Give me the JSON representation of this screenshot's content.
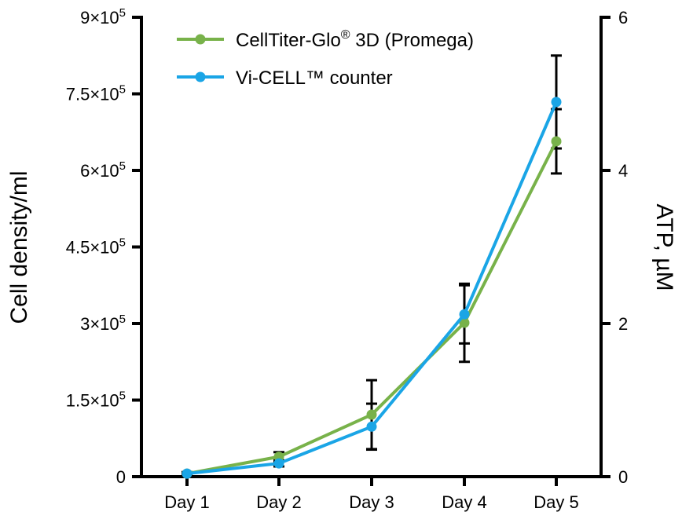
{
  "chart_data": {
    "type": "line",
    "categories": [
      "Day 1",
      "Day 2",
      "Day 3",
      "Day 4",
      "Day 5"
    ],
    "y_left": {
      "label": "Cell density/ml",
      "range": [
        0,
        900000
      ],
      "ticks": [
        0,
        150000,
        300000,
        450000,
        600000,
        750000,
        900000
      ],
      "tick_labels": [
        {
          "mantissa": "0",
          "exp": ""
        },
        {
          "mantissa": "1.5×10",
          "exp": "5"
        },
        {
          "mantissa": "3×10",
          "exp": "5"
        },
        {
          "mantissa": "4.5×10",
          "exp": "5"
        },
        {
          "mantissa": "6×10",
          "exp": "5"
        },
        {
          "mantissa": "7.5×10",
          "exp": "5"
        },
        {
          "mantissa": "9×10",
          "exp": "5"
        }
      ]
    },
    "y_right": {
      "label": "ATP, µM",
      "range": [
        0,
        6
      ],
      "ticks": [
        0,
        2,
        4,
        6
      ],
      "tick_labels": [
        "0",
        "2",
        "4",
        "6"
      ]
    },
    "series": [
      {
        "name": "CellTiter-Glo® 3D (Promega)",
        "legend_main": "CellTiter-Glo",
        "legend_sup": "®",
        "legend_rest": " 3D (Promega)",
        "axis": "right",
        "color": "#78b24a",
        "values": [
          0.04,
          0.26,
          0.81,
          2.01,
          4.38
        ],
        "errors": [
          0.02,
          0.06,
          0.45,
          0.51,
          0.42
        ]
      },
      {
        "name": "Vi-CELL™ counter",
        "legend_main": "Vi-CELL™ counter",
        "legend_sup": "",
        "legend_rest": "",
        "axis": "left",
        "color": "#1aa5e6",
        "values": [
          6000,
          26000,
          98000,
          318000,
          734000
        ],
        "errors": [
          2000,
          6000,
          45000,
          57000,
          91000
        ]
      }
    ],
    "legend_position": "top-left",
    "grid": false
  }
}
